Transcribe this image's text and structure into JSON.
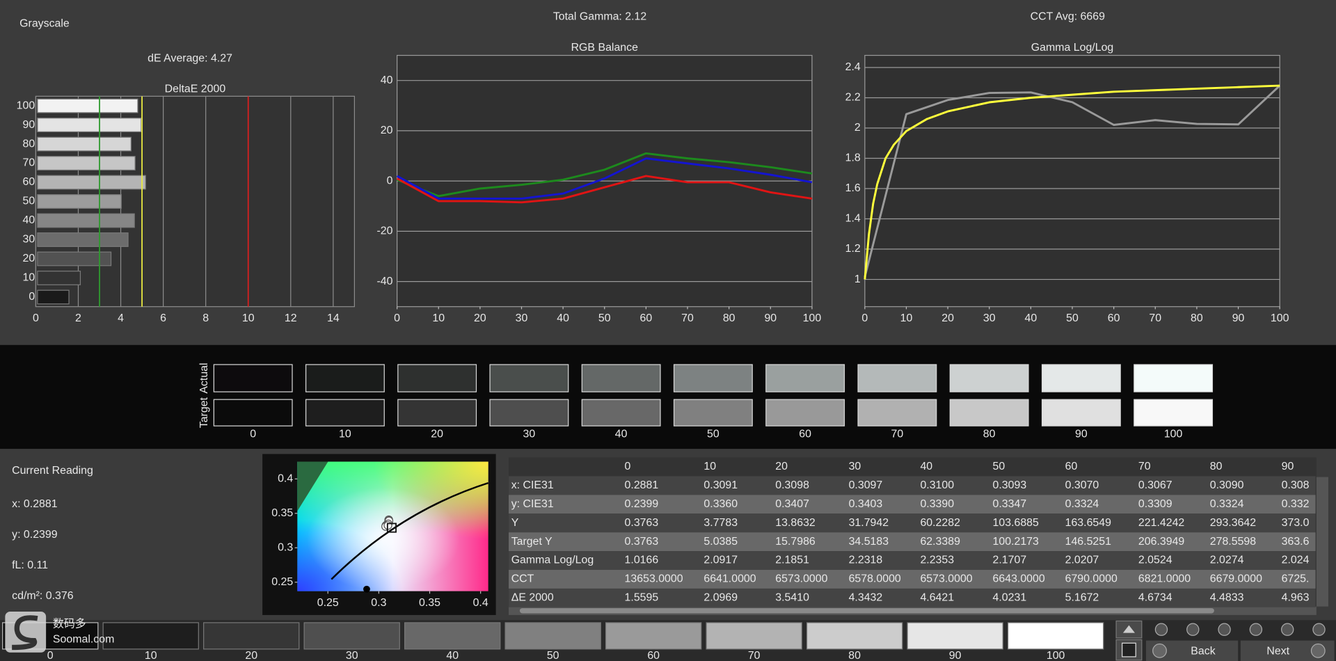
{
  "header": {
    "title": "Grayscale"
  },
  "chart_data": [
    {
      "type": "bar",
      "heading": "dE Average: 4.27",
      "title": "DeltaE 2000",
      "categories": [
        "100",
        "90",
        "80",
        "70",
        "60",
        "50",
        "40",
        "30",
        "20",
        "10",
        "0"
      ],
      "values": [
        4.8,
        4.963,
        4.4833,
        4.6734,
        5.1672,
        4.0231,
        4.6421,
        4.3432,
        3.541,
        2.0969,
        1.5595
      ],
      "colors": [
        "#f2f2f2",
        "#e4e4e4",
        "#d6d6d6",
        "#c6c6c6",
        "#b4b4b4",
        "#9c9c9c",
        "#868686",
        "#6c6c6c",
        "#525252",
        "#333333",
        "#1a1a1a"
      ],
      "xlim": [
        0,
        15
      ],
      "xticks": [
        0,
        2,
        4,
        6,
        8,
        10,
        12,
        14
      ],
      "grid": true,
      "reference_lines": [
        {
          "value": 3,
          "color": "#2f9a2f"
        },
        {
          "value": 5,
          "color": "#e6e640"
        },
        {
          "value": 10,
          "color": "#d42020"
        }
      ]
    },
    {
      "type": "line",
      "heading": "Total Gamma: 2.12",
      "title": "RGB Balance",
      "x": [
        0,
        10,
        20,
        30,
        40,
        50,
        60,
        70,
        80,
        90,
        100
      ],
      "series": [
        {
          "color": "#1d8a1d",
          "values": [
            0.5,
            -6,
            -3,
            -1.5,
            0.5,
            4.5,
            11,
            9,
            7.5,
            5.5,
            3
          ]
        },
        {
          "color": "#1414d0",
          "values": [
            2,
            -7,
            -7,
            -7,
            -5,
            1,
            9,
            7,
            5,
            2.5,
            -0.5
          ]
        },
        {
          "color": "#e01414",
          "values": [
            1,
            -8,
            -8,
            -8.5,
            -7,
            -2.5,
            2,
            -0.5,
            -0.5,
            -4.5,
            -7
          ]
        }
      ],
      "xlim": [
        0,
        100
      ],
      "xticks": [
        0,
        10,
        20,
        30,
        40,
        50,
        60,
        70,
        80,
        90,
        100
      ],
      "ylim": [
        -50,
        50
      ],
      "yticks": [
        -40,
        -20,
        0,
        20,
        40
      ],
      "grid": true
    },
    {
      "type": "line",
      "heading": "CCT Avg: 6669",
      "title": "Gamma Log/Log",
      "series": [
        {
          "color": "#9a9a9a",
          "x": [
            0,
            10,
            20,
            30,
            40,
            50,
            60,
            70,
            80,
            90,
            100
          ],
          "values": [
            1.0166,
            2.0917,
            2.1851,
            2.2318,
            2.2353,
            2.1707,
            2.0207,
            2.0524,
            2.0274,
            2.024,
            2.28
          ]
        },
        {
          "color": "#ffff3c",
          "x": [
            0,
            1,
            2,
            3,
            5,
            7,
            10,
            15,
            20,
            30,
            40,
            50,
            60,
            70,
            80,
            90,
            100
          ],
          "values": [
            1.0,
            1.3,
            1.5,
            1.63,
            1.8,
            1.89,
            1.98,
            2.06,
            2.11,
            2.17,
            2.2,
            2.22,
            2.24,
            2.25,
            2.26,
            2.27,
            2.28
          ]
        }
      ],
      "xlim": [
        0,
        100
      ],
      "xticks": [
        0,
        10,
        20,
        30,
        40,
        50,
        60,
        70,
        80,
        90,
        100
      ],
      "ylim": [
        0.82,
        2.48
      ],
      "yticks": [
        1,
        1.2,
        1.4,
        1.6,
        1.8,
        2,
        2.2,
        2.4
      ],
      "grid": true
    },
    {
      "type": "scatter",
      "series": [
        {
          "color": "#ffffff",
          "marker": "circle",
          "x": [
            0.3091,
            0.3098,
            0.3097,
            0.31,
            0.3093,
            0.307,
            0.3067,
            0.309
          ],
          "values": [
            0.336,
            0.3407,
            0.3403,
            0.339,
            0.3347,
            0.3324,
            0.3309,
            0.3324
          ]
        },
        {
          "color": "#111111",
          "marker": "square",
          "x": [
            0.3127
          ],
          "values": [
            0.329
          ]
        },
        {
          "color": "#000000",
          "marker": "dot",
          "x": [
            0.2881
          ],
          "values": [
            0.2399
          ]
        }
      ],
      "xlim": [
        0.22,
        0.4075
      ],
      "xticks": [
        0.25,
        0.3,
        0.35,
        0.4
      ],
      "ylim": [
        0.237,
        0.425
      ],
      "yticks": [
        0.25,
        0.3,
        0.35,
        0.4
      ],
      "grid": false
    }
  ],
  "swatches": {
    "row_labels": [
      "Actual",
      "Target"
    ],
    "levels": [
      "0",
      "10",
      "20",
      "30",
      "40",
      "50",
      "60",
      "70",
      "80",
      "90",
      "100"
    ],
    "actual_colors": [
      "#0d0b0d",
      "#1a1c1b",
      "#2e302f",
      "#4a4e4c",
      "#646867",
      "#7d8282",
      "#9aa09f",
      "#b4b9b9",
      "#cdd1d1",
      "#e4e8e8",
      "#f4fbfa"
    ],
    "target_colors": [
      "#0b0b0b",
      "#1e1e1e",
      "#343434",
      "#4e4e4e",
      "#686868",
      "#808080",
      "#999999",
      "#b1b1b1",
      "#c8c8c8",
      "#e0e0e0",
      "#f8f8f8"
    ]
  },
  "reading": {
    "title": "Current Reading",
    "lines": [
      "x: 0.2881",
      "y: 0.2399",
      "fL: 0.11",
      "cd/m²: 0.376"
    ]
  },
  "table": {
    "columns": [
      "0",
      "10",
      "20",
      "30",
      "40",
      "50",
      "60",
      "70",
      "80",
      "90"
    ],
    "rows": [
      [
        "x: CIE31",
        "0.2881",
        "0.3091",
        "0.3098",
        "0.3097",
        "0.3100",
        "0.3093",
        "0.3070",
        "0.3067",
        "0.3090",
        "0.308"
      ],
      [
        "y: CIE31",
        "0.2399",
        "0.3360",
        "0.3407",
        "0.3403",
        "0.3390",
        "0.3347",
        "0.3324",
        "0.3309",
        "0.3324",
        "0.332"
      ],
      [
        "Y",
        "0.3763",
        "3.7783",
        "13.8632",
        "31.7942",
        "60.2282",
        "103.6885",
        "163.6549",
        "221.4242",
        "293.3642",
        "373.0"
      ],
      [
        "Target Y",
        "0.3763",
        "5.0385",
        "15.7986",
        "34.5183",
        "62.3389",
        "100.2173",
        "146.5251",
        "206.3949",
        "278.5598",
        "363.6"
      ],
      [
        "Gamma Log/Log",
        "1.0166",
        "2.0917",
        "2.1851",
        "2.2318",
        "2.2353",
        "2.1707",
        "2.0207",
        "2.0524",
        "2.0274",
        "2.024"
      ],
      [
        "CCT",
        "13653.0000",
        "6641.0000",
        "6573.0000",
        "6578.0000",
        "6573.0000",
        "6643.0000",
        "6790.0000",
        "6821.0000",
        "6679.0000",
        "6725."
      ],
      [
        "ΔE 2000",
        "1.5595",
        "2.0969",
        "3.5410",
        "4.3432",
        "4.6421",
        "4.0231",
        "5.1672",
        "4.6734",
        "4.4833",
        "4.963"
      ]
    ]
  },
  "toolbar": {
    "levels": [
      "0",
      "10",
      "20",
      "30",
      "40",
      "50",
      "60",
      "70",
      "80",
      "90",
      "100"
    ],
    "colors": [
      "#0e0e0e",
      "#1e1e1e",
      "#363636",
      "#4f4f4f",
      "#686868",
      "#808080",
      "#9a9a9a",
      "#b3b3b3",
      "#cccccc",
      "#e6e6e6",
      "#ffffff"
    ],
    "back": "Back",
    "next": "Next"
  },
  "watermark": {
    "name": "数码多",
    "site": "Soomal.com"
  }
}
